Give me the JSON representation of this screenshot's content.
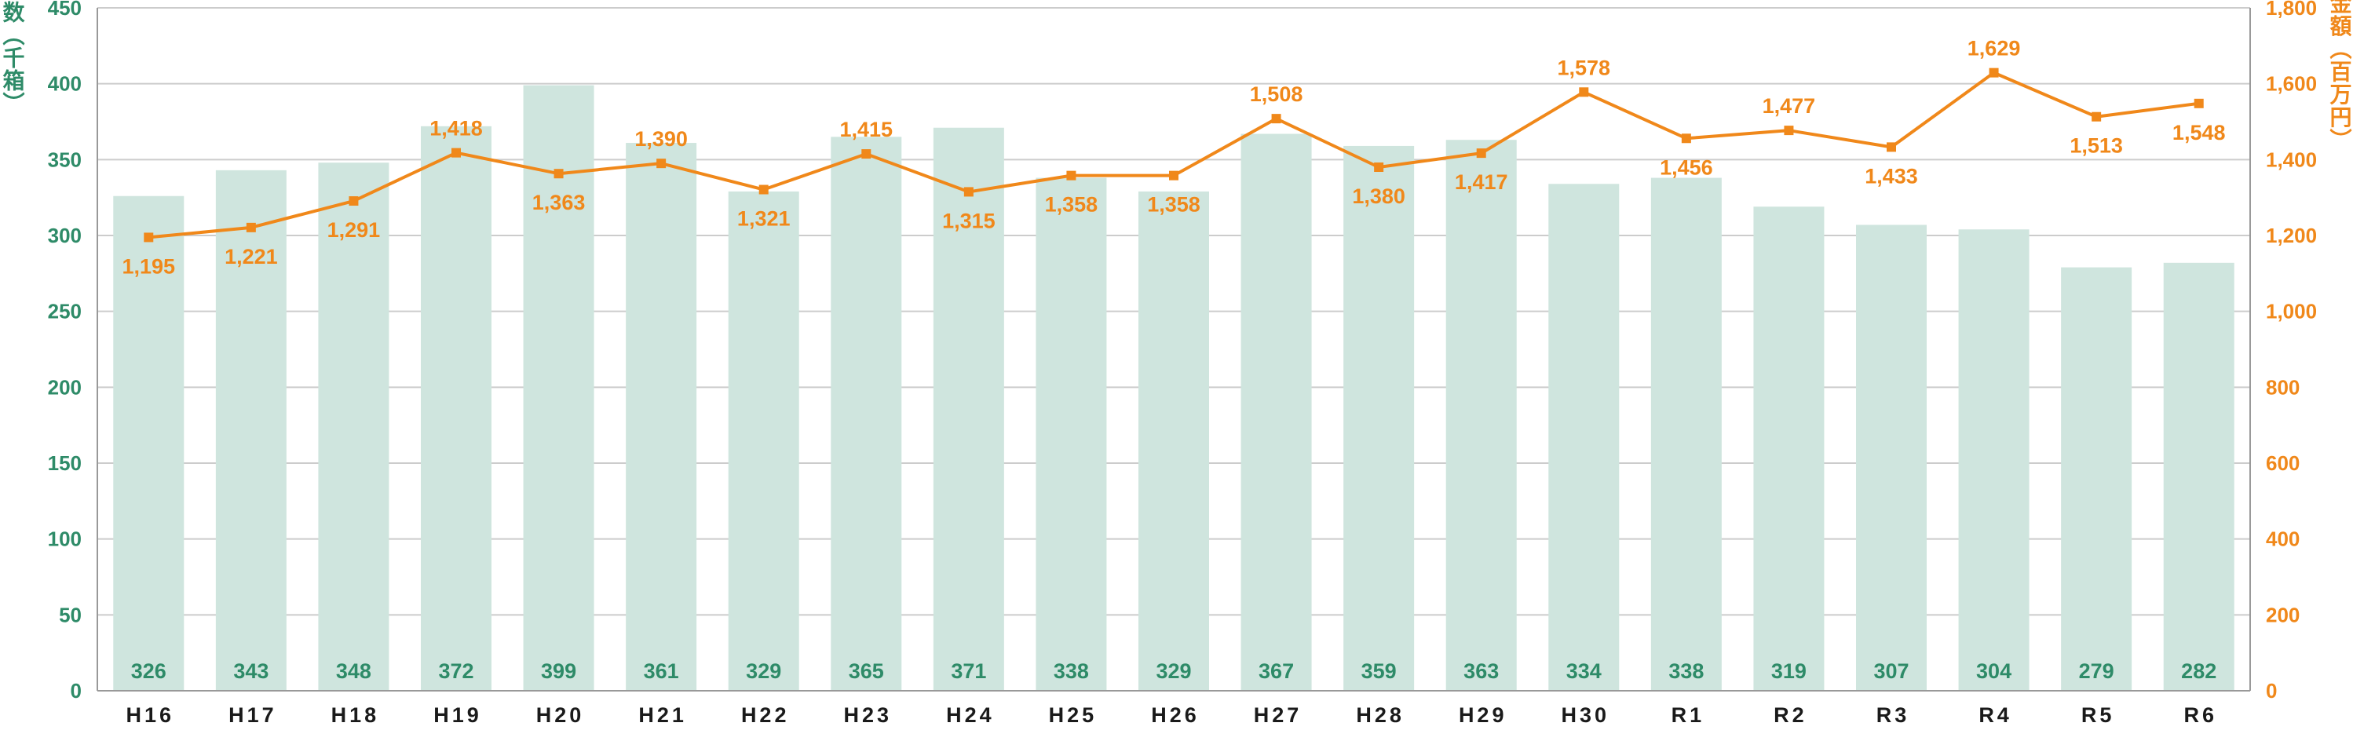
{
  "chart_data": {
    "type": "bar+line",
    "categories": [
      "H16",
      "H17",
      "H18",
      "H19",
      "H20",
      "H21",
      "H22",
      "H23",
      "H24",
      "H25",
      "H26",
      "H27",
      "H28",
      "H29",
      "H30",
      "R1",
      "R2",
      "R3",
      "R4",
      "R5",
      "R6"
    ],
    "series": [
      {
        "name": "取扱箱数（千箱）",
        "type": "bar",
        "axis": "left",
        "values": [
          326,
          343,
          348,
          372,
          399,
          361,
          329,
          365,
          371,
          338,
          329,
          367,
          359,
          363,
          334,
          338,
          319,
          307,
          304,
          279,
          282
        ],
        "labels": [
          "326",
          "343",
          "348",
          "372",
          "399",
          "361",
          "329",
          "365",
          "371",
          "338",
          "329",
          "367",
          "359",
          "363",
          "334",
          "338",
          "319",
          "307",
          "304",
          "279",
          "282"
        ]
      },
      {
        "name": "販売金額（百万円）",
        "type": "line",
        "axis": "right",
        "values": [
          1195,
          1221,
          1291,
          1418,
          1363,
          1390,
          1321,
          1415,
          1315,
          1358,
          1358,
          1508,
          1380,
          1417,
          1578,
          1456,
          1477,
          1433,
          1629,
          1513,
          1548
        ],
        "labels": [
          "1,195",
          "1,221",
          "1,291",
          "1,418",
          "1,363",
          "1,390",
          "1,321",
          "1,415",
          "1,315",
          "1,358",
          "1,358",
          "1,508",
          "1,380",
          "1,417",
          "1,578",
          "1,456",
          "1,477",
          "1,433",
          "1,629",
          "1,513",
          "1,548"
        ]
      }
    ],
    "y_left": {
      "label": "取扱箱数（千箱）",
      "ylim": [
        0,
        450
      ],
      "ticks": [
        "0",
        "50",
        "100",
        "150",
        "200",
        "250",
        "300",
        "350",
        "400",
        "450"
      ]
    },
    "y_right": {
      "label": "販売金額（百万円）",
      "ylim": [
        0,
        1800
      ],
      "ticks": [
        "0",
        "200",
        "400",
        "600",
        "800",
        "1,000",
        "1,200",
        "1,400",
        "1,600",
        "1,800"
      ]
    },
    "grid": true,
    "colors": {
      "bar": "#cfe5de",
      "bar_label": "#2e8b68",
      "left_axis": "#2e8b68",
      "line": "#f0881a",
      "right_axis": "#f0881a",
      "grid": "#cccccc",
      "axis": "#999999",
      "category": "#1a1a1a"
    }
  }
}
